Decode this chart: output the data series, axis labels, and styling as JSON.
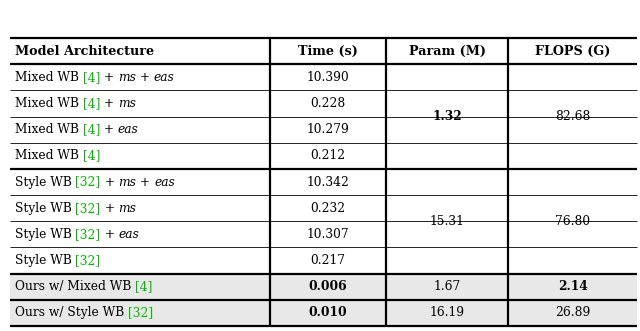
{
  "headers": [
    "Model Architecture",
    "Time (s)",
    "Param (M)",
    "FLOPS (G)"
  ],
  "rows": [
    {
      "arch_segs": [
        [
          "n",
          "Mixed WB "
        ],
        [
          "g",
          "[4]"
        ],
        [
          "n",
          " + "
        ],
        [
          "i",
          "ms"
        ],
        [
          "n",
          " + "
        ],
        [
          "i",
          "eas"
        ]
      ],
      "time": "10.390",
      "param": "",
      "flops": "",
      "time_bold": false
    },
    {
      "arch_segs": [
        [
          "n",
          "Mixed WB "
        ],
        [
          "g",
          "[4]"
        ],
        [
          "n",
          " + "
        ],
        [
          "i",
          "ms"
        ]
      ],
      "time": "0.228",
      "param": "",
      "flops": "",
      "time_bold": false
    },
    {
      "arch_segs": [
        [
          "n",
          "Mixed WB "
        ],
        [
          "g",
          "[4]"
        ],
        [
          "n",
          " + "
        ],
        [
          "i",
          "eas"
        ]
      ],
      "time": "10.279",
      "param": "",
      "flops": "",
      "time_bold": false
    },
    {
      "arch_segs": [
        [
          "n",
          "Mixed WB "
        ],
        [
          "g",
          "[4]"
        ]
      ],
      "time": "0.212",
      "param": "",
      "flops": "",
      "time_bold": false
    },
    {
      "arch_segs": [
        [
          "n",
          "Style WB "
        ],
        [
          "g",
          "[32]"
        ],
        [
          "n",
          " + "
        ],
        [
          "i",
          "ms"
        ],
        [
          "n",
          " + "
        ],
        [
          "i",
          "eas"
        ]
      ],
      "time": "10.342",
      "param": "",
      "flops": "",
      "time_bold": false
    },
    {
      "arch_segs": [
        [
          "n",
          "Style WB "
        ],
        [
          "g",
          "[32]"
        ],
        [
          "n",
          " + "
        ],
        [
          "i",
          "ms"
        ]
      ],
      "time": "0.232",
      "param": "",
      "flops": "",
      "time_bold": false
    },
    {
      "arch_segs": [
        [
          "n",
          "Style WB "
        ],
        [
          "g",
          "[32]"
        ],
        [
          "n",
          " + "
        ],
        [
          "i",
          "eas"
        ]
      ],
      "time": "10.307",
      "param": "",
      "flops": "",
      "time_bold": false
    },
    {
      "arch_segs": [
        [
          "n",
          "Style WB "
        ],
        [
          "g",
          "[32]"
        ]
      ],
      "time": "0.217",
      "param": "",
      "flops": "",
      "time_bold": false
    },
    {
      "arch_segs": [
        [
          "n",
          "Ours w/ Mixed WB "
        ],
        [
          "g",
          "[4]"
        ]
      ],
      "time": "0.006",
      "param": "1.67",
      "flops": "2.14",
      "time_bold": true,
      "flops_bold": true
    },
    {
      "arch_segs": [
        [
          "n",
          "Ours w/ Style WB "
        ],
        [
          "g",
          "[32]"
        ]
      ],
      "time": "0.010",
      "param": "16.19",
      "flops": "26.89",
      "time_bold": true,
      "flops_bold": false
    }
  ],
  "merged_cells": [
    {
      "rows": [
        0,
        1,
        2,
        3
      ],
      "param": "1.32",
      "flops": "82.68",
      "param_bold": true,
      "flops_bold": false
    },
    {
      "rows": [
        4,
        5,
        6,
        7
      ],
      "param": "15.31",
      "flops": "76.80",
      "param_bold": false,
      "flops_bold": false
    }
  ],
  "thin_after_rows": [
    0,
    1,
    2,
    4,
    5,
    6
  ],
  "thick_after_rows": [
    3,
    7,
    8
  ],
  "highlight_rows": [
    8,
    9
  ],
  "background_color": "#ffffff",
  "text_color": "#000000",
  "green_color": "#00bb00",
  "highlight_bg": "#e8e8e8",
  "thick_lw": 1.6,
  "thin_lw": 0.6
}
